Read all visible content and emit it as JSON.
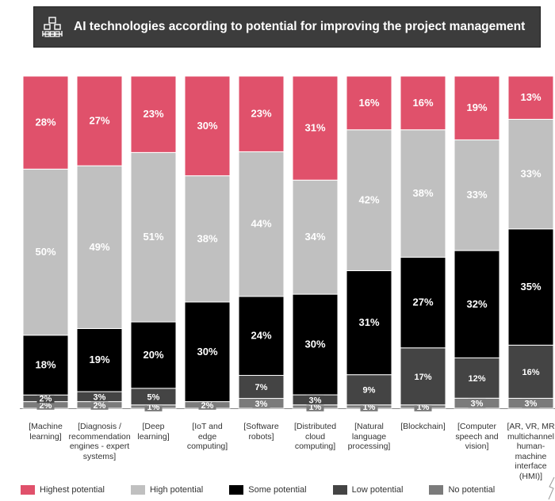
{
  "title": "AI technologies according to potential for improving the project management",
  "icons": {
    "title_icon": "hands-with-boxes-icon"
  },
  "colors": {
    "title_bg": "#3c3c3c",
    "highest": "#e0516b",
    "high": "#c0c0c0",
    "some": "#000000",
    "low": "#444444",
    "no": "#7b7b7b"
  },
  "chart_data": {
    "type": "bar",
    "stacked": true,
    "normalized": true,
    "categories": [
      "[Machine learning]",
      "[Diagnosis / recommendation engines - expert systems]",
      "[Deep learning]",
      "[IoT and edge computing]",
      "[Software robots]",
      "[Distributed cloud computing]",
      "[Natural language processing]",
      "[Blockchain]",
      "[Computer speech and vision]",
      "[AR, VR, MR multichannel human-machine interface (HMI)]"
    ],
    "category_lines": [
      [
        "[Machine",
        "learning]"
      ],
      [
        "[Diagnosis /",
        "recommendation",
        "engines - expert",
        "systems]"
      ],
      [
        "[Deep",
        "learning]"
      ],
      [
        "[IoT and",
        "edge",
        "computing]"
      ],
      [
        "[Software",
        "robots]"
      ],
      [
        "[Distributed",
        "cloud",
        "computing]"
      ],
      [
        "[Natural",
        "language",
        "processing]"
      ],
      [
        "[Blockchain]"
      ],
      [
        "[Computer",
        "speech and",
        "vision]"
      ],
      [
        "[AR, VR, MR",
        "multichannel",
        "human-",
        "machine",
        "interface",
        "(HMI)]"
      ]
    ],
    "series": [
      {
        "name": "No potential",
        "values": [
          2,
          2,
          1,
          2,
          3,
          1,
          1,
          1,
          3,
          3
        ]
      },
      {
        "name": "Low potential",
        "values": [
          2,
          3,
          5,
          0,
          7,
          3,
          9,
          17,
          12,
          16
        ]
      },
      {
        "name": "Some potential",
        "values": [
          18,
          19,
          20,
          30,
          24,
          30,
          31,
          27,
          32,
          35
        ]
      },
      {
        "name": "High potential",
        "values": [
          50,
          49,
          51,
          38,
          44,
          34,
          42,
          38,
          33,
          33
        ]
      },
      {
        "name": "Highest potential",
        "values": [
          28,
          27,
          23,
          30,
          23,
          31,
          16,
          16,
          19,
          13
        ]
      }
    ],
    "data_labels": [
      [
        "2%",
        "2%",
        "1%",
        "2%",
        "3%",
        "1%",
        "1%",
        "1%",
        "3%",
        "3%"
      ],
      [
        "2%",
        "3%",
        "5%",
        "",
        "7%",
        "3%",
        "9%",
        "17%",
        "12%",
        "16%"
      ],
      [
        "18%",
        "19%",
        "20%",
        "30%",
        "24%",
        "30%",
        "31%",
        "27%",
        "32%",
        "35%"
      ],
      [
        "50%",
        "49%",
        "51%",
        "38%",
        "44%",
        "34%",
        "42%",
        "38%",
        "33%",
        "33%"
      ],
      [
        "28%",
        "27%",
        "23%",
        "30%",
        "23%",
        "31%",
        "16%",
        "16%",
        "19%",
        "13%"
      ]
    ],
    "legend": [
      "Highest potential",
      "High potential",
      "Some potential",
      "Low potential",
      "No potential"
    ],
    "legend_position": "bottom",
    "grid": false
  }
}
